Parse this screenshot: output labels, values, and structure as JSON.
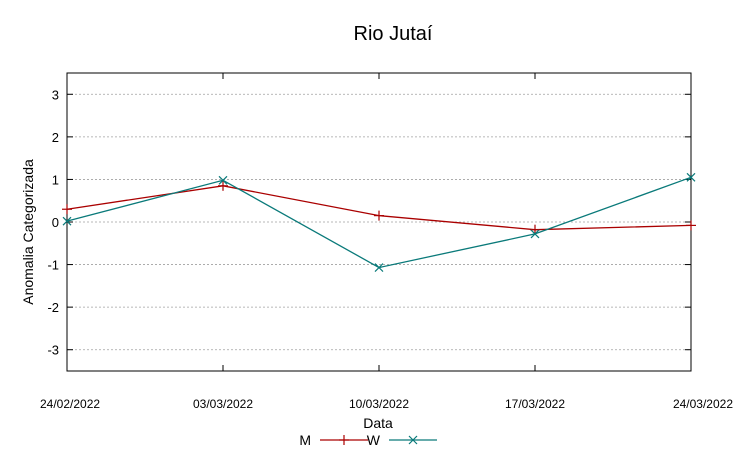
{
  "chart_data": {
    "type": "line",
    "title": "Rio Jutaí",
    "xlabel": "Data",
    "ylabel": "Anomalia Categorizada",
    "x": [
      "24/02/2022",
      "03/03/2022",
      "10/03/2022",
      "17/03/2022",
      "24/03/2022"
    ],
    "ylim": [
      -3.5,
      3.5
    ],
    "yticks": [
      -3,
      -2,
      -1,
      0,
      1,
      2,
      3
    ],
    "grid": true,
    "legend": "bottom",
    "series": [
      {
        "name": "M",
        "color": "#aa0000",
        "marker": "plus",
        "values": [
          0.3,
          0.85,
          0.15,
          -0.18,
          -0.08
        ]
      },
      {
        "name": "W",
        "color": "#0a7a7a",
        "marker": "x",
        "values": [
          0.02,
          0.98,
          -1.07,
          -0.28,
          1.05
        ]
      }
    ]
  }
}
